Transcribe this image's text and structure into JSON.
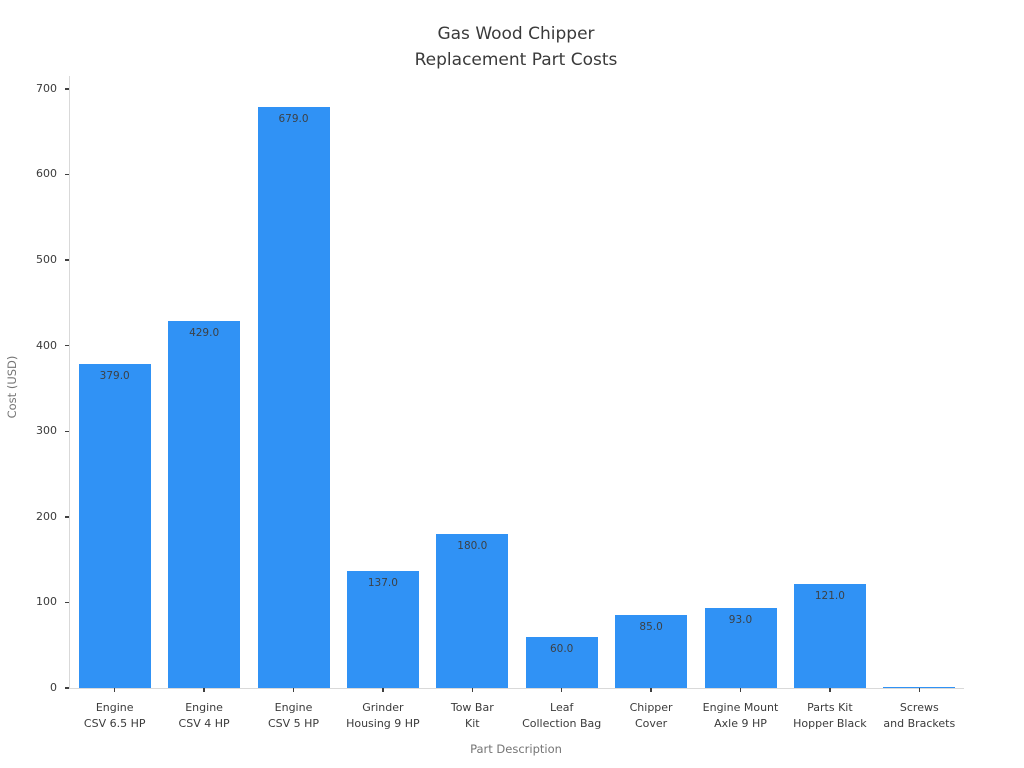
{
  "chart_data": {
    "type": "bar",
    "title": "Gas Wood Chipper Replacement Part Costs",
    "title_lines": [
      "Gas Wood Chipper",
      "Replacement Part Costs"
    ],
    "xlabel": "Part Description",
    "ylabel": "Cost (USD)",
    "categories": [
      "Engine CSV 6.5 HP",
      "Engine CSV 4 HP",
      "Engine CSV 5 HP",
      "Grinder Housing 9 HP",
      "Tow Bar Kit",
      "Leaf Collection Bag",
      "Chipper Cover",
      "Engine Mount Axle 9 HP",
      "Parts Kit Hopper Black",
      "Screws and Brackets"
    ],
    "category_lines": [
      [
        "Engine",
        "CSV 6.5 HP"
      ],
      [
        "Engine",
        "CSV 4 HP"
      ],
      [
        "Engine",
        "CSV 5 HP"
      ],
      [
        "Grinder",
        "Housing 9 HP"
      ],
      [
        "Tow Bar",
        "Kit"
      ],
      [
        "Leaf",
        "Collection Bag"
      ],
      [
        "Chipper",
        "Cover"
      ],
      [
        "Engine Mount",
        "Axle 9 HP"
      ],
      [
        "Parts Kit",
        "Hopper Black"
      ],
      [
        "Screws",
        "and Brackets"
      ]
    ],
    "values": [
      379,
      429,
      679,
      137,
      180,
      60,
      85,
      93,
      121,
      1
    ],
    "bar_value_labels": [
      "379.0",
      "429.0",
      "679.0",
      "137.0",
      "180.0",
      "60.0",
      "85.0",
      "93.0",
      "121.0",
      ""
    ],
    "yticks": [
      0,
      100,
      200,
      300,
      400,
      500,
      600,
      700
    ],
    "ylim": [
      0,
      715
    ],
    "grid": false,
    "legend": "none",
    "bar_color": "#3092f5",
    "background_color": "#ffffff"
  }
}
